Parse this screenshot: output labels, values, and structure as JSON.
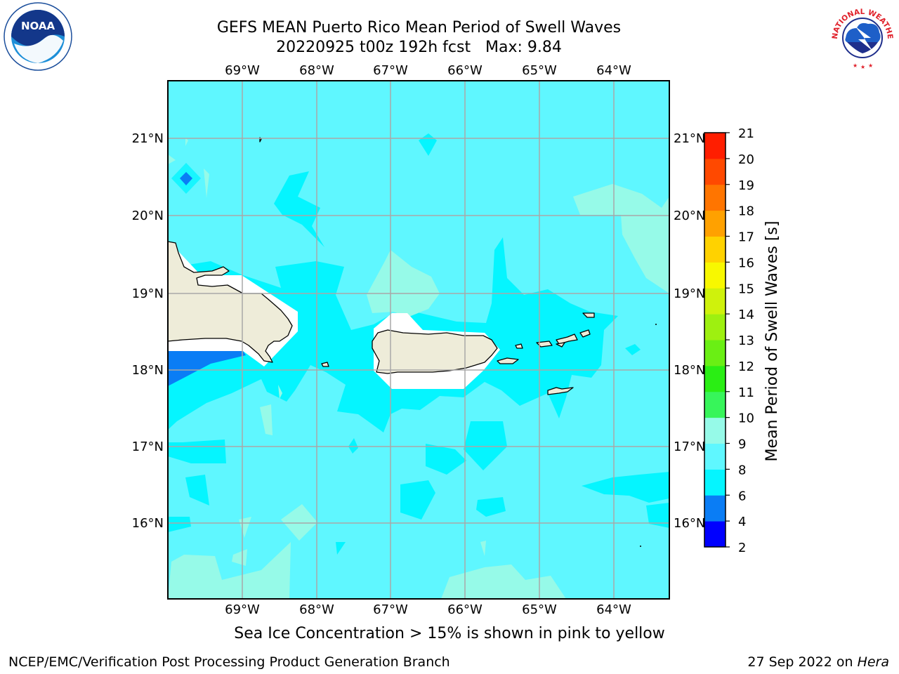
{
  "header": {
    "title_line1": "GEFS MEAN Puerto Rico Mean Period of Swell Waves",
    "title_line2": "20220925 t00z 192h fcst   Max: 9.84"
  },
  "logos": {
    "left_text": "NOAA",
    "right_text": "NATIONAL WEATHER SERVICE"
  },
  "map": {
    "lon_labels": [
      "69°W",
      "68°W",
      "67°W",
      "66°W",
      "65°W",
      "64°W"
    ],
    "lat_labels": [
      "21°N",
      "20°N",
      "19°N",
      "18°N",
      "17°N",
      "16°N"
    ],
    "islands": [
      "Hispaniola",
      "Puerto Rico",
      "Virgin Islands"
    ],
    "colors": {
      "ocean_7": "#5ff7ff",
      "ocean_6": "#05f5ff",
      "ocean_9": "#96fae8",
      "ocean_4": "#0a7df5",
      "land": "#eeecd9"
    }
  },
  "colorbar": {
    "label": "Mean Period of Swell Waves [s]",
    "ticks": [
      "2",
      "4",
      "6",
      "8",
      "9",
      "10",
      "11",
      "12",
      "13",
      "14",
      "15",
      "16",
      "17",
      "18",
      "19",
      "20",
      "21"
    ],
    "colors": [
      "#0000ff",
      "#0a7df5",
      "#05f5ff",
      "#5ff7ff",
      "#96fae8",
      "#37f55a",
      "#2aee14",
      "#6aef14",
      "#9ef010",
      "#cff20c",
      "#f8f800",
      "#ffd200",
      "#ffa100",
      "#ff7500",
      "#ff4900",
      "#ff1e00"
    ]
  },
  "footnote": "Sea Ice Concentration > 15% is shown in pink to yellow",
  "footer": {
    "left": "NCEP/EMC/Verification Post Processing Product Generation Branch",
    "right_prefix": "27 Sep 2022 on ",
    "right_host": "Hera"
  }
}
